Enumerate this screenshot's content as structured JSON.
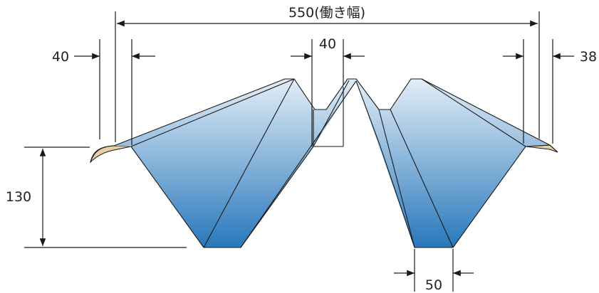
{
  "labels": {
    "working_width": "550(働き幅)",
    "left_lap": "40",
    "top_rib": "40",
    "right_lap": "38",
    "height": "130",
    "bottom_flat": "50"
  },
  "colors": {
    "panel_top": "#dde9f6",
    "panel_bottom": "#2b7bbd",
    "edge_tan": "#e6cfa2",
    "line": "#1a1a1a"
  }
}
